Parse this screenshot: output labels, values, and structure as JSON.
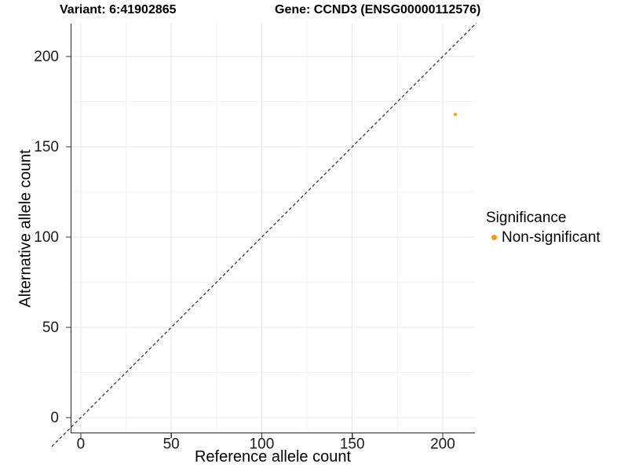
{
  "chart_data": {
    "type": "scatter",
    "title_left": "Variant: 6:41902865",
    "title_right": "Gene: CCND3 (ENSG00000112576)",
    "xlabel": "Reference allele count",
    "ylabel": "Alternative allele count",
    "xlim": [
      -5.6,
      217.8
    ],
    "ylim": [
      -8.7,
      218.3
    ],
    "xticks": [
      0,
      50,
      100,
      150,
      200
    ],
    "yticks": [
      0,
      50,
      100,
      150,
      200
    ],
    "xminor": [
      25,
      75,
      125,
      175
    ],
    "yminor": [
      25,
      75,
      125,
      175
    ],
    "grid": "major+minor, white panel background",
    "series": [
      {
        "name": "Non-significant",
        "color": "#F8981D",
        "points": [
          {
            "x": 207,
            "y": 168
          }
        ]
      }
    ],
    "identity_line": {
      "slope": 1,
      "intercept": 0,
      "style": "dashed",
      "color": "#2a2a2a",
      "span": [
        -16,
        218.5
      ]
    },
    "legend": {
      "title": "Significance",
      "position": "right",
      "items": [
        {
          "label": "Non-significant",
          "color": "#F8981D"
        }
      ]
    },
    "colors": {
      "grid_major": "#e6e6e6",
      "grid_minor": "#f2f2f2",
      "axis_line": "#262626",
      "tick_mark": "#333333",
      "tick_label": "#1a1a1a",
      "point": "#F8981D"
    }
  }
}
